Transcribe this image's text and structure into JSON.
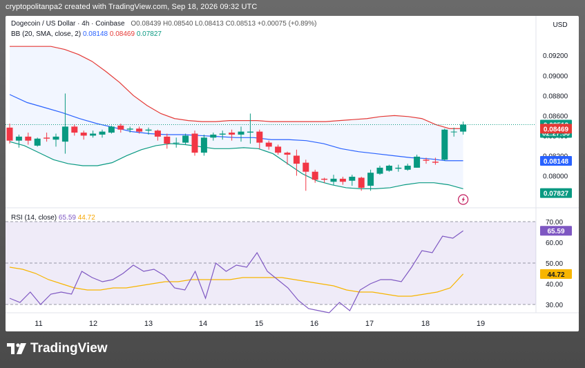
{
  "top_caption": "cryptopolitanpa2 created with TradingView.com, Sep 18, 2026 09:32 UTC",
  "header": {
    "symbol": "Dogecoin / US Dollar · 4h · Coinbase",
    "ohlc": "O0.08439  H0.08540  L0.08413  C0.08513  +0.00075 (+0.89%)",
    "bb_label": "BB (20, SMA, close, 2)",
    "bb_basis": "0.08148",
    "bb_upper": "0.08469",
    "bb_lower": "0.07827",
    "currency": "USD"
  },
  "rsi_header": {
    "label": "RSI (14, close)",
    "rsi": "65.59",
    "ma": "44.72"
  },
  "price_tags": {
    "last": "0.08513",
    "countdown": "02:27:50",
    "upper": "0.08469",
    "basis": "0.08148",
    "lower": "0.07827",
    "rsi": "65.59",
    "rsi_ma": "44.72"
  },
  "brand": "TradingView",
  "colors": {
    "up": "#089981",
    "down": "#f23645",
    "bb_upper": "#e53935",
    "bb_basis": "#2962ff",
    "bb_lower": "#089981",
    "rsi": "#7e57c2",
    "rsi_ma": "#f7b500"
  },
  "chart_data": [
    {
      "type": "candlestick",
      "title": "Dogecoin / US Dollar · 4h · Coinbase",
      "x_ticks": [
        "11",
        "12",
        "13",
        "14",
        "15",
        "16",
        "17",
        "18",
        "19"
      ],
      "y_ticks": [
        "0.08000",
        "0.08200",
        "0.08400",
        "0.08600",
        "0.08800",
        "0.09000",
        "0.09200"
      ],
      "ylim": [
        0.0768,
        0.0936
      ],
      "candles": [
        [
          0.0848,
          0.0852,
          0.0832,
          0.0835
        ],
        [
          0.0835,
          0.0841,
          0.0828,
          0.0839
        ],
        [
          0.0839,
          0.0843,
          0.0831,
          0.0835
        ],
        [
          0.083,
          0.0838,
          0.0829,
          0.0837
        ],
        [
          0.0838,
          0.0843,
          0.0834,
          0.0837
        ],
        [
          0.0836,
          0.0842,
          0.0829,
          0.0839
        ],
        [
          0.0834,
          0.0882,
          0.0822,
          0.0849
        ],
        [
          0.0849,
          0.0851,
          0.084,
          0.0843
        ],
        [
          0.0843,
          0.0845,
          0.0836,
          0.084
        ],
        [
          0.084,
          0.0845,
          0.0838,
          0.0842
        ],
        [
          0.0841,
          0.0846,
          0.0838,
          0.0844
        ],
        [
          0.0843,
          0.085,
          0.0842,
          0.0849
        ],
        [
          0.085,
          0.0852,
          0.0843,
          0.0846
        ],
        [
          0.0846,
          0.0849,
          0.0843,
          0.0847
        ],
        [
          0.0847,
          0.0849,
          0.0842,
          0.0844
        ],
        [
          0.0845,
          0.0848,
          0.0841,
          0.0846
        ],
        [
          0.0845,
          0.0846,
          0.0835,
          0.0839
        ],
        [
          0.0839,
          0.0842,
          0.0827,
          0.0832
        ],
        [
          0.0833,
          0.0838,
          0.0828,
          0.0833
        ],
        [
          0.0833,
          0.0842,
          0.0831,
          0.084
        ],
        [
          0.0842,
          0.0845,
          0.082,
          0.0823
        ],
        [
          0.0823,
          0.0841,
          0.082,
          0.0838
        ],
        [
          0.0838,
          0.0843,
          0.0835,
          0.0841
        ],
        [
          0.0841,
          0.0845,
          0.0836,
          0.0842
        ],
        [
          0.0843,
          0.0846,
          0.0835,
          0.0841
        ],
        [
          0.0841,
          0.0849,
          0.0834,
          0.0844
        ],
        [
          0.0843,
          0.0862,
          0.0832,
          0.0844
        ],
        [
          0.0844,
          0.0846,
          0.0827,
          0.0833
        ],
        [
          0.0833,
          0.0835,
          0.0826,
          0.0829
        ],
        [
          0.0829,
          0.0831,
          0.0821,
          0.0823
        ],
        [
          0.0823,
          0.0824,
          0.0811,
          0.0821
        ],
        [
          0.082,
          0.0826,
          0.08,
          0.0812
        ],
        [
          0.0813,
          0.0816,
          0.0785,
          0.0804
        ],
        [
          0.0804,
          0.0806,
          0.0793,
          0.0796
        ],
        [
          0.0797,
          0.0798,
          0.0793,
          0.0796
        ],
        [
          0.0794,
          0.0801,
          0.0791,
          0.0797
        ],
        [
          0.0797,
          0.0799,
          0.0791,
          0.0794
        ],
        [
          0.0795,
          0.0801,
          0.079,
          0.0799
        ],
        [
          0.0798,
          0.0799,
          0.0785,
          0.0788
        ],
        [
          0.079,
          0.0806,
          0.0785,
          0.0803
        ],
        [
          0.0802,
          0.081,
          0.0801,
          0.0808
        ],
        [
          0.0805,
          0.0811,
          0.0804,
          0.081
        ],
        [
          0.0807,
          0.0811,
          0.0804,
          0.0808
        ],
        [
          0.0806,
          0.0812,
          0.0805,
          0.081
        ],
        [
          0.0808,
          0.0821,
          0.0808,
          0.0819
        ],
        [
          0.0816,
          0.0818,
          0.0812,
          0.0815
        ],
        [
          0.0814,
          0.0818,
          0.0811,
          0.0813
        ],
        [
          0.0816,
          0.0847,
          0.0815,
          0.0846
        ],
        [
          0.0844,
          0.0848,
          0.0839,
          0.0844
        ],
        [
          0.0844,
          0.0854,
          0.0841,
          0.0851
        ]
      ],
      "bb_upper": [
        0.0929,
        0.0929,
        0.0929,
        0.0929,
        0.0926,
        0.0921,
        0.0914,
        0.0904,
        0.0893,
        0.088,
        0.087,
        0.0862,
        0.0857,
        0.0855,
        0.0854,
        0.0854,
        0.0855,
        0.0855,
        0.0855,
        0.0854,
        0.0854,
        0.0854,
        0.0854,
        0.0854,
        0.0855,
        0.0856,
        0.0857,
        0.0859,
        0.086,
        0.0859,
        0.0857,
        0.0851,
        0.0847,
        0.0847
      ],
      "bb_basis": [
        0.0881,
        0.0873,
        0.0868,
        0.0863,
        0.0857,
        0.0852,
        0.0848,
        0.0844,
        0.0842,
        0.0841,
        0.0841,
        0.084,
        0.0839,
        0.0838,
        0.0838,
        0.0836,
        0.0836,
        0.0835,
        0.0832,
        0.0827,
        0.0824,
        0.0822,
        0.082,
        0.0818,
        0.0817,
        0.0815,
        0.0815
      ],
      "bb_lower": [
        0.0834,
        0.083,
        0.0823,
        0.0816,
        0.0812,
        0.081,
        0.081,
        0.0813,
        0.082,
        0.0826,
        0.083,
        0.0832,
        0.0831,
        0.0829,
        0.0827,
        0.0827,
        0.0828,
        0.0827,
        0.0822,
        0.0812,
        0.0802,
        0.0795,
        0.0791,
        0.0788,
        0.0787,
        0.0787,
        0.0788,
        0.0791,
        0.0793,
        0.0793,
        0.0791,
        0.0787
      ]
    },
    {
      "type": "line",
      "title": "RSI (14, close)",
      "y_ticks": [
        "30.00",
        "40.00",
        "50.00",
        "60.00",
        "70.00"
      ],
      "ylim": [
        26,
        72
      ],
      "bands": [
        30,
        50,
        70
      ],
      "series": [
        {
          "name": "RSI",
          "values": [
            33,
            31,
            36,
            30,
            35,
            36,
            35,
            46,
            43,
            41,
            42,
            45,
            49,
            46,
            47,
            44,
            38,
            37,
            46,
            33,
            50,
            46,
            49,
            48,
            55,
            46,
            42,
            38,
            32,
            28,
            27,
            26,
            31,
            27,
            37,
            40,
            42,
            42,
            41,
            48,
            56,
            55,
            63,
            62,
            65.59
          ]
        },
        {
          "name": "MA",
          "values": [
            48,
            47,
            45,
            42,
            40,
            38,
            37,
            37,
            38,
            38,
            39,
            40,
            41,
            41,
            42,
            42,
            42,
            42,
            43,
            43,
            43,
            43,
            42,
            41,
            40,
            39,
            37,
            36,
            36,
            35,
            34,
            34,
            35,
            36,
            38,
            44.72
          ]
        }
      ]
    }
  ]
}
